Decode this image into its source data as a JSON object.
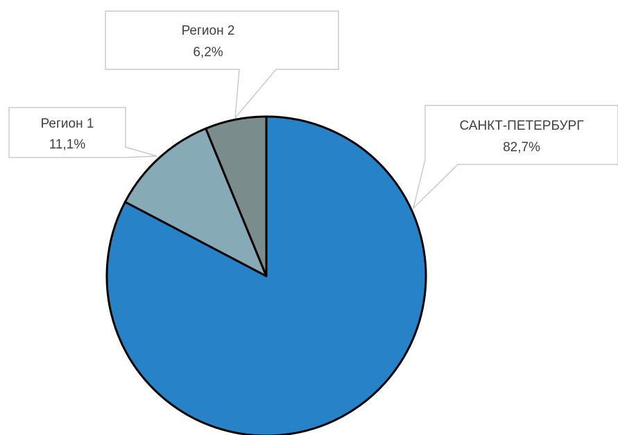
{
  "chart_data": {
    "type": "pie",
    "title": "",
    "legend": "none",
    "start_angle_deg": 0,
    "direction": "clockwise",
    "slices": [
      {
        "label": "САНКТ-ПЕТЕРБУРГ",
        "value": 82.7,
        "value_label": "82,7%",
        "color": "#2882c8"
      },
      {
        "label": "Регион 1",
        "value": 11.1,
        "value_label": "11,1%",
        "color": "#86abb6"
      },
      {
        "label": "Регион 2",
        "value": 6.2,
        "value_label": "6,2%",
        "color": "#7a8c8c"
      }
    ]
  }
}
